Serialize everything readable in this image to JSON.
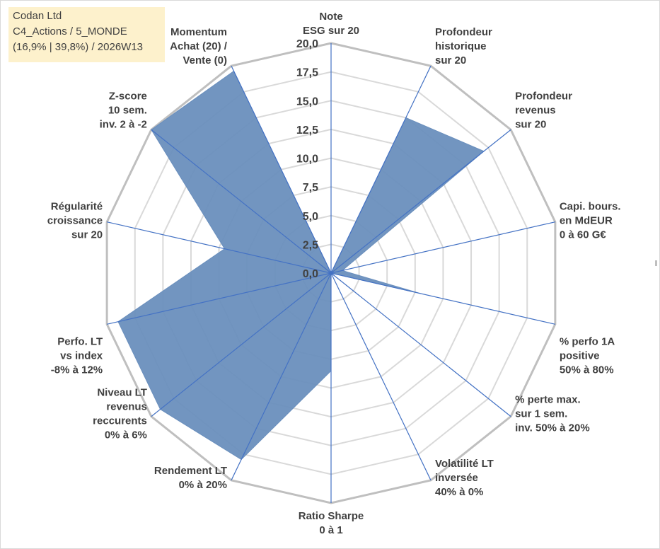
{
  "info_box": {
    "line1": "Codan Ltd",
    "line2": "C4_Actions / 5_MONDE",
    "line3": "(16,9% | 39,8%) / 2026W13"
  },
  "colors": {
    "fill": "#6a8fbd",
    "spoke": "#4472c4",
    "outer_grid": "#bfbfbf",
    "inner_grid": "#d9d9d9",
    "text": "#404040",
    "info_bg": "#fdf1cc"
  },
  "chart_data": {
    "type": "radar",
    "title": "",
    "rmin": 0,
    "rmax": 20,
    "tick_labels": [
      "0,0",
      "2,5",
      "5,0",
      "7,5",
      "10,0",
      "12,5",
      "15,0",
      "17,5",
      "20,0"
    ],
    "axes": [
      {
        "label": [
          "Note",
          "ESG sur 20"
        ],
        "value": 0
      },
      {
        "label": [
          "Profondeur",
          "historique",
          "sur 20"
        ],
        "value": 15
      },
      {
        "label": [
          "Profondeur",
          "revenus",
          "sur 20"
        ],
        "value": 17
      },
      {
        "label": [
          "Capi. bours.",
          "en MdEUR",
          "0 à 60 G€"
        ],
        "value": 1
      },
      {
        "label": [
          "% perfo 1A",
          "positive",
          "50% à 80%"
        ],
        "value": 8
      },
      {
        "label": [
          "% perte max.",
          "sur 1 sem.",
          "inv. 50% à 20%"
        ],
        "value": 0
      },
      {
        "label": [
          "Volatilité LT",
          "inversée",
          "40% à 0%"
        ],
        "value": 0
      },
      {
        "label": [
          "Ratio Sharpe",
          "0 à 1"
        ],
        "value": 8.5
      },
      {
        "label": [
          "Rendement LT",
          "0% à 20%"
        ],
        "value": 18
      },
      {
        "label": [
          "Niveau LT",
          "revenus",
          "reccurents",
          "0% à 6%"
        ],
        "value": 19
      },
      {
        "label": [
          "Perfo. LT",
          "vs index",
          "-8% à 12%"
        ],
        "value": 19
      },
      {
        "label": [
          "Régularité",
          "croissance",
          "sur 20"
        ],
        "value": 9.5
      },
      {
        "label": [
          "Z-score",
          "10 sem.",
          "inv. 2 à -2"
        ],
        "value": 20
      },
      {
        "label": [
          "Momentum",
          "Achat (20) /",
          "Vente (0)"
        ],
        "value": 19.5
      }
    ]
  }
}
